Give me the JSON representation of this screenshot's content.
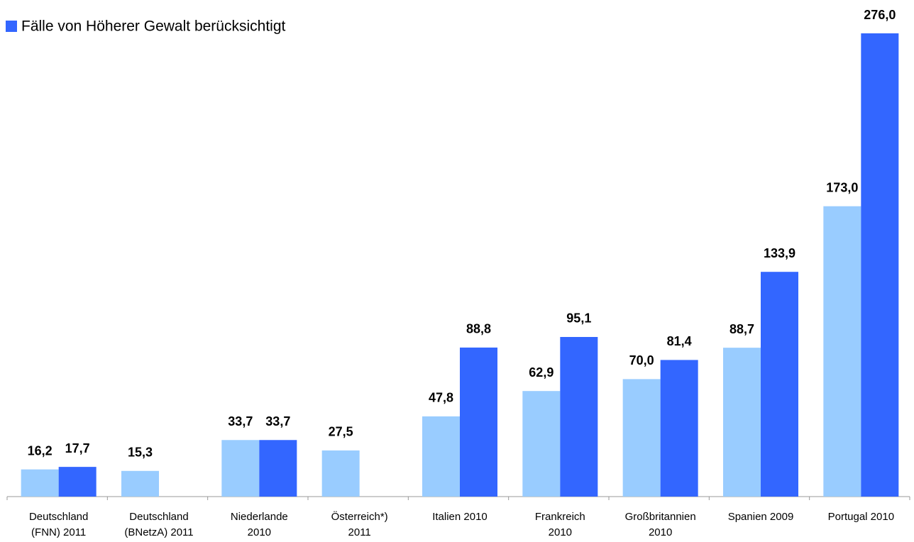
{
  "chart_data": {
    "type": "bar",
    "categories": [
      "Deutschland\n(FNN) 2011",
      "Deutschland\n(BNetzA) 2011",
      "Niederlande\n2010",
      "Österreich*)\n2011",
      "Italien 2010",
      "Frankreich\n2010",
      "Großbritannien\n2010",
      "Spanien 2009",
      "Portugal 2010"
    ],
    "series": [
      {
        "color": "#99ccff",
        "values": [
          16.2,
          15.3,
          33.7,
          27.5,
          47.8,
          62.9,
          70.0,
          88.7,
          173.0
        ],
        "value_labels": [
          "16,2",
          "15,3",
          "33,7",
          "27,5",
          "47,8",
          "62,9",
          "70,0",
          "88,7",
          "173,0"
        ]
      },
      {
        "name": "Fälle von Höherer Gewalt berücksichtigt",
        "color": "#3366ff",
        "values": [
          17.7,
          null,
          33.7,
          null,
          88.8,
          95.1,
          81.4,
          133.9,
          276.0
        ],
        "value_labels": [
          "17,7",
          null,
          "33,7",
          null,
          "88,8",
          "95,1",
          "81,4",
          "133,9",
          "276,0"
        ]
      }
    ]
  }
}
